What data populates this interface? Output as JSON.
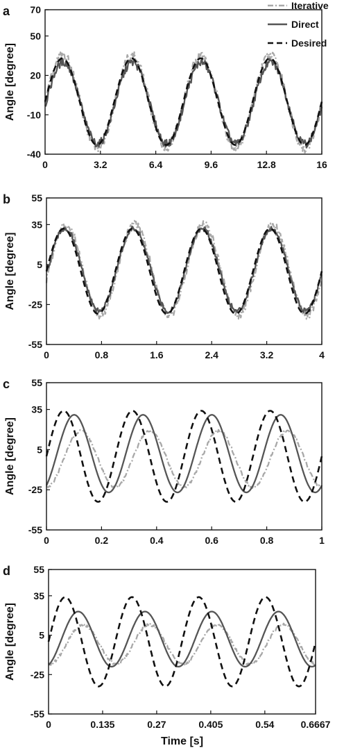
{
  "legend": {
    "placement": "top-right",
    "entries": [
      {
        "label": "Iterative",
        "color": "#a8a8a8",
        "style": "dash-dot"
      },
      {
        "label": "Direct",
        "color": "#555555",
        "style": "solid"
      },
      {
        "label": "Desired",
        "color": "#111111",
        "style": "dashed"
      }
    ]
  },
  "chart_data": [
    {
      "panel_label": "a",
      "type": "line",
      "ylabel": "Angle [degree]",
      "xlabel": "",
      "xlim": [
        0,
        16
      ],
      "ylim": [
        -40,
        70
      ],
      "x_ticks": [
        "0",
        "3.2",
        "6.4",
        "9.6",
        "12.8",
        "16"
      ],
      "y_ticks": [
        "-40",
        "-10",
        "20",
        "50",
        "70"
      ],
      "signal": {
        "period": 4,
        "x_end": 16
      },
      "series": [
        {
          "name": "Desired",
          "amplitude": 33,
          "offset": 0,
          "phase_deg": 0,
          "noise": 0
        },
        {
          "name": "Direct",
          "amplitude": 31,
          "offset": -1,
          "phase_deg": 4,
          "noise": 3
        },
        {
          "name": "Iterative",
          "amplitude": 35,
          "offset": 0,
          "phase_deg": 2,
          "noise": 4
        }
      ]
    },
    {
      "panel_label": "b",
      "type": "line",
      "ylabel": "Angle [degree]",
      "xlabel": "",
      "xlim": [
        0,
        4
      ],
      "ylim": [
        -55,
        55
      ],
      "x_ticks": [
        "0",
        "0.8",
        "1.6",
        "2.4",
        "3.2",
        "4"
      ],
      "y_ticks": [
        "-55",
        "-25",
        "5",
        "35",
        "55"
      ],
      "signal": {
        "period": 1,
        "x_end": 4
      },
      "series": [
        {
          "name": "Desired",
          "amplitude": 32,
          "offset": 0,
          "phase_deg": 0,
          "noise": 0
        },
        {
          "name": "Direct",
          "amplitude": 31,
          "offset": 1,
          "phase_deg": 6,
          "noise": 2
        },
        {
          "name": "Iterative",
          "amplitude": 34,
          "offset": 1,
          "phase_deg": 12,
          "noise": 3
        }
      ]
    },
    {
      "panel_label": "c",
      "type": "line",
      "ylabel": "Angle [degree]",
      "xlabel": "",
      "xlim": [
        0,
        1
      ],
      "ylim": [
        -55,
        55
      ],
      "x_ticks": [
        "0",
        "0.2",
        "0.4",
        "0.6",
        "0.8",
        "1"
      ],
      "y_ticks": [
        "-55",
        "-25",
        "5",
        "35",
        "55"
      ],
      "signal": {
        "period": 0.25,
        "x_end": 1
      },
      "series": [
        {
          "name": "Desired",
          "amplitude": 34,
          "offset": 0,
          "phase_deg": 0,
          "noise": 0
        },
        {
          "name": "Direct",
          "amplitude": 29,
          "offset": 2,
          "phase_deg": 55,
          "noise": 0
        },
        {
          "name": "Iterative",
          "amplitude": 21,
          "offset": -2,
          "phase_deg": 90,
          "noise": 1
        }
      ]
    },
    {
      "panel_label": "d",
      "type": "line",
      "ylabel": "Angle [degree]",
      "xlabel": "Time [s]",
      "xlim": [
        0,
        0.6667
      ],
      "ylim": [
        -55,
        55
      ],
      "x_ticks": [
        "0",
        "0.135",
        "0.27",
        "0.405",
        "0.54",
        "0.6667"
      ],
      "y_ticks": [
        "-55",
        "-25",
        "5",
        "35",
        "55"
      ],
      "signal": {
        "period": 0.1667,
        "x_end": 0.6667
      },
      "series": [
        {
          "name": "Desired",
          "amplitude": 34,
          "offset": 0,
          "phase_deg": 0,
          "noise": 0
        },
        {
          "name": "Direct",
          "amplitude": 21,
          "offset": 2,
          "phase_deg": 70,
          "noise": 0
        },
        {
          "name": "Iterative",
          "amplitude": 15,
          "offset": -2,
          "phase_deg": 95,
          "noise": 1
        }
      ]
    }
  ]
}
